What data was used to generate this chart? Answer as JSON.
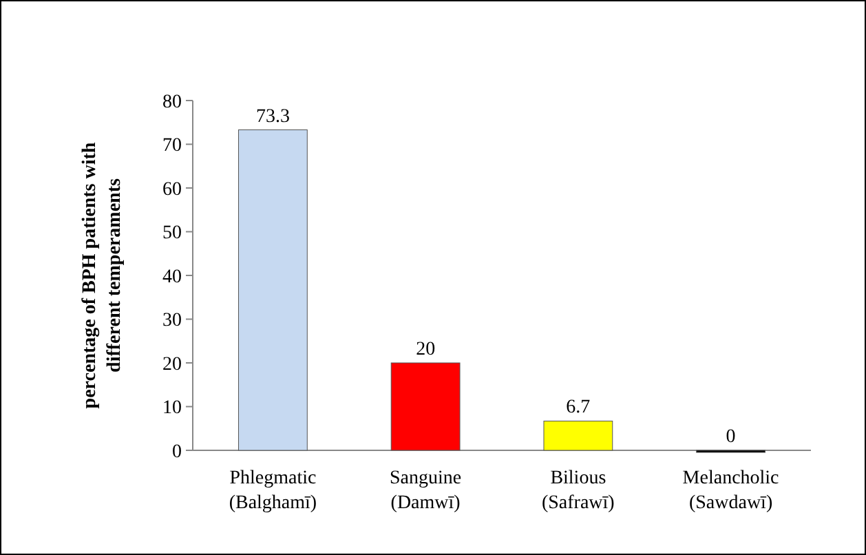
{
  "chart_data": {
    "type": "bar",
    "ylabel": "percentage of BPH patients with\ndifferent temperaments",
    "categories": [
      "Phlegmatic\n(Balghamī)",
      "Sanguine\n(Damwī)",
      "Bilious\n(Safrawī)",
      "Melancholic\n(Sawdawī)"
    ],
    "values": [
      73.3,
      20,
      6.7,
      0
    ],
    "colors": [
      "#c6d9f1",
      "#ff0000",
      "#ffff00",
      "#000000"
    ],
    "ylim": [
      0,
      80
    ],
    "yticks": [
      0,
      10,
      20,
      30,
      40,
      50,
      60,
      70,
      80
    ],
    "data_labels": true,
    "grid": false
  }
}
